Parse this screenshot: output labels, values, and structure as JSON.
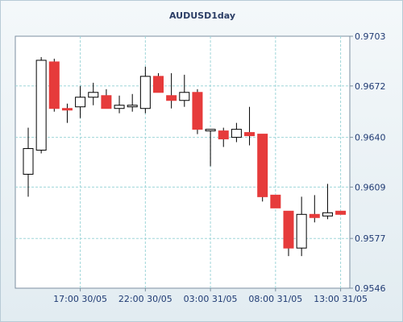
{
  "chart_data": {
    "type": "candlestick",
    "title": "AUDUSD1day",
    "xlabel": "",
    "ylabel": "",
    "ylim": [
      0.9546,
      0.9703
    ],
    "y_ticks": [
      "0.9703",
      "0.9672",
      "0.9640",
      "0.9609",
      "0.9577",
      "0.9546"
    ],
    "x_ticks": [
      {
        "label": "17:00 30/05",
        "index": 4
      },
      {
        "label": "22:00 30/05",
        "index": 9
      },
      {
        "label": "03:00 31/05",
        "index": 14
      },
      {
        "label": "08:00 31/05",
        "index": 19
      },
      {
        "label": "13:00 31/05",
        "index": 24
      }
    ],
    "grid": true,
    "colors": {
      "bullish": "#ffffff",
      "bearish": "#e63b3b",
      "outline": "#000000",
      "grid": "#9fd6d9"
    },
    "candles": [
      {
        "open": 0.9617,
        "high": 0.9646,
        "low": 0.9603,
        "close": 0.9633
      },
      {
        "open": 0.9632,
        "high": 0.969,
        "low": 0.963,
        "close": 0.9688
      },
      {
        "open": 0.9687,
        "high": 0.9689,
        "low": 0.9656,
        "close": 0.9658
      },
      {
        "open": 0.9658,
        "high": 0.9661,
        "low": 0.9649,
        "close": 0.9657
      },
      {
        "open": 0.9659,
        "high": 0.9672,
        "low": 0.9652,
        "close": 0.9665
      },
      {
        "open": 0.9665,
        "high": 0.9674,
        "low": 0.966,
        "close": 0.9668
      },
      {
        "open": 0.9666,
        "high": 0.967,
        "low": 0.9658,
        "close": 0.9658
      },
      {
        "open": 0.9658,
        "high": 0.9666,
        "low": 0.9655,
        "close": 0.966
      },
      {
        "open": 0.9659,
        "high": 0.9667,
        "low": 0.9656,
        "close": 0.966
      },
      {
        "open": 0.9658,
        "high": 0.9684,
        "low": 0.9655,
        "close": 0.9678
      },
      {
        "open": 0.9678,
        "high": 0.968,
        "low": 0.9668,
        "close": 0.9668
      },
      {
        "open": 0.9666,
        "high": 0.968,
        "low": 0.9658,
        "close": 0.9663
      },
      {
        "open": 0.9663,
        "high": 0.9679,
        "low": 0.9659,
        "close": 0.9668
      },
      {
        "open": 0.9668,
        "high": 0.967,
        "low": 0.9642,
        "close": 0.9645
      },
      {
        "open": 0.9645,
        "high": 0.9645,
        "low": 0.9622,
        "close": 0.9645
      },
      {
        "open": 0.9644,
        "high": 0.9646,
        "low": 0.9634,
        "close": 0.9639
      },
      {
        "open": 0.964,
        "high": 0.9649,
        "low": 0.9637,
        "close": 0.9645
      },
      {
        "open": 0.9643,
        "high": 0.9659,
        "low": 0.9635,
        "close": 0.9641
      },
      {
        "open": 0.9642,
        "high": 0.9642,
        "low": 0.96,
        "close": 0.9603
      },
      {
        "open": 0.9604,
        "high": 0.9604,
        "low": 0.9596,
        "close": 0.9596
      },
      {
        "open": 0.9594,
        "high": 0.9594,
        "low": 0.9566,
        "close": 0.9571
      },
      {
        "open": 0.9571,
        "high": 0.9603,
        "low": 0.9566,
        "close": 0.9592
      },
      {
        "open": 0.9592,
        "high": 0.9604,
        "low": 0.9587,
        "close": 0.959
      },
      {
        "open": 0.9591,
        "high": 0.9611,
        "low": 0.9589,
        "close": 0.9593
      },
      {
        "open": 0.9594,
        "high": 0.9594,
        "low": 0.9592,
        "close": 0.9592
      }
    ]
  }
}
